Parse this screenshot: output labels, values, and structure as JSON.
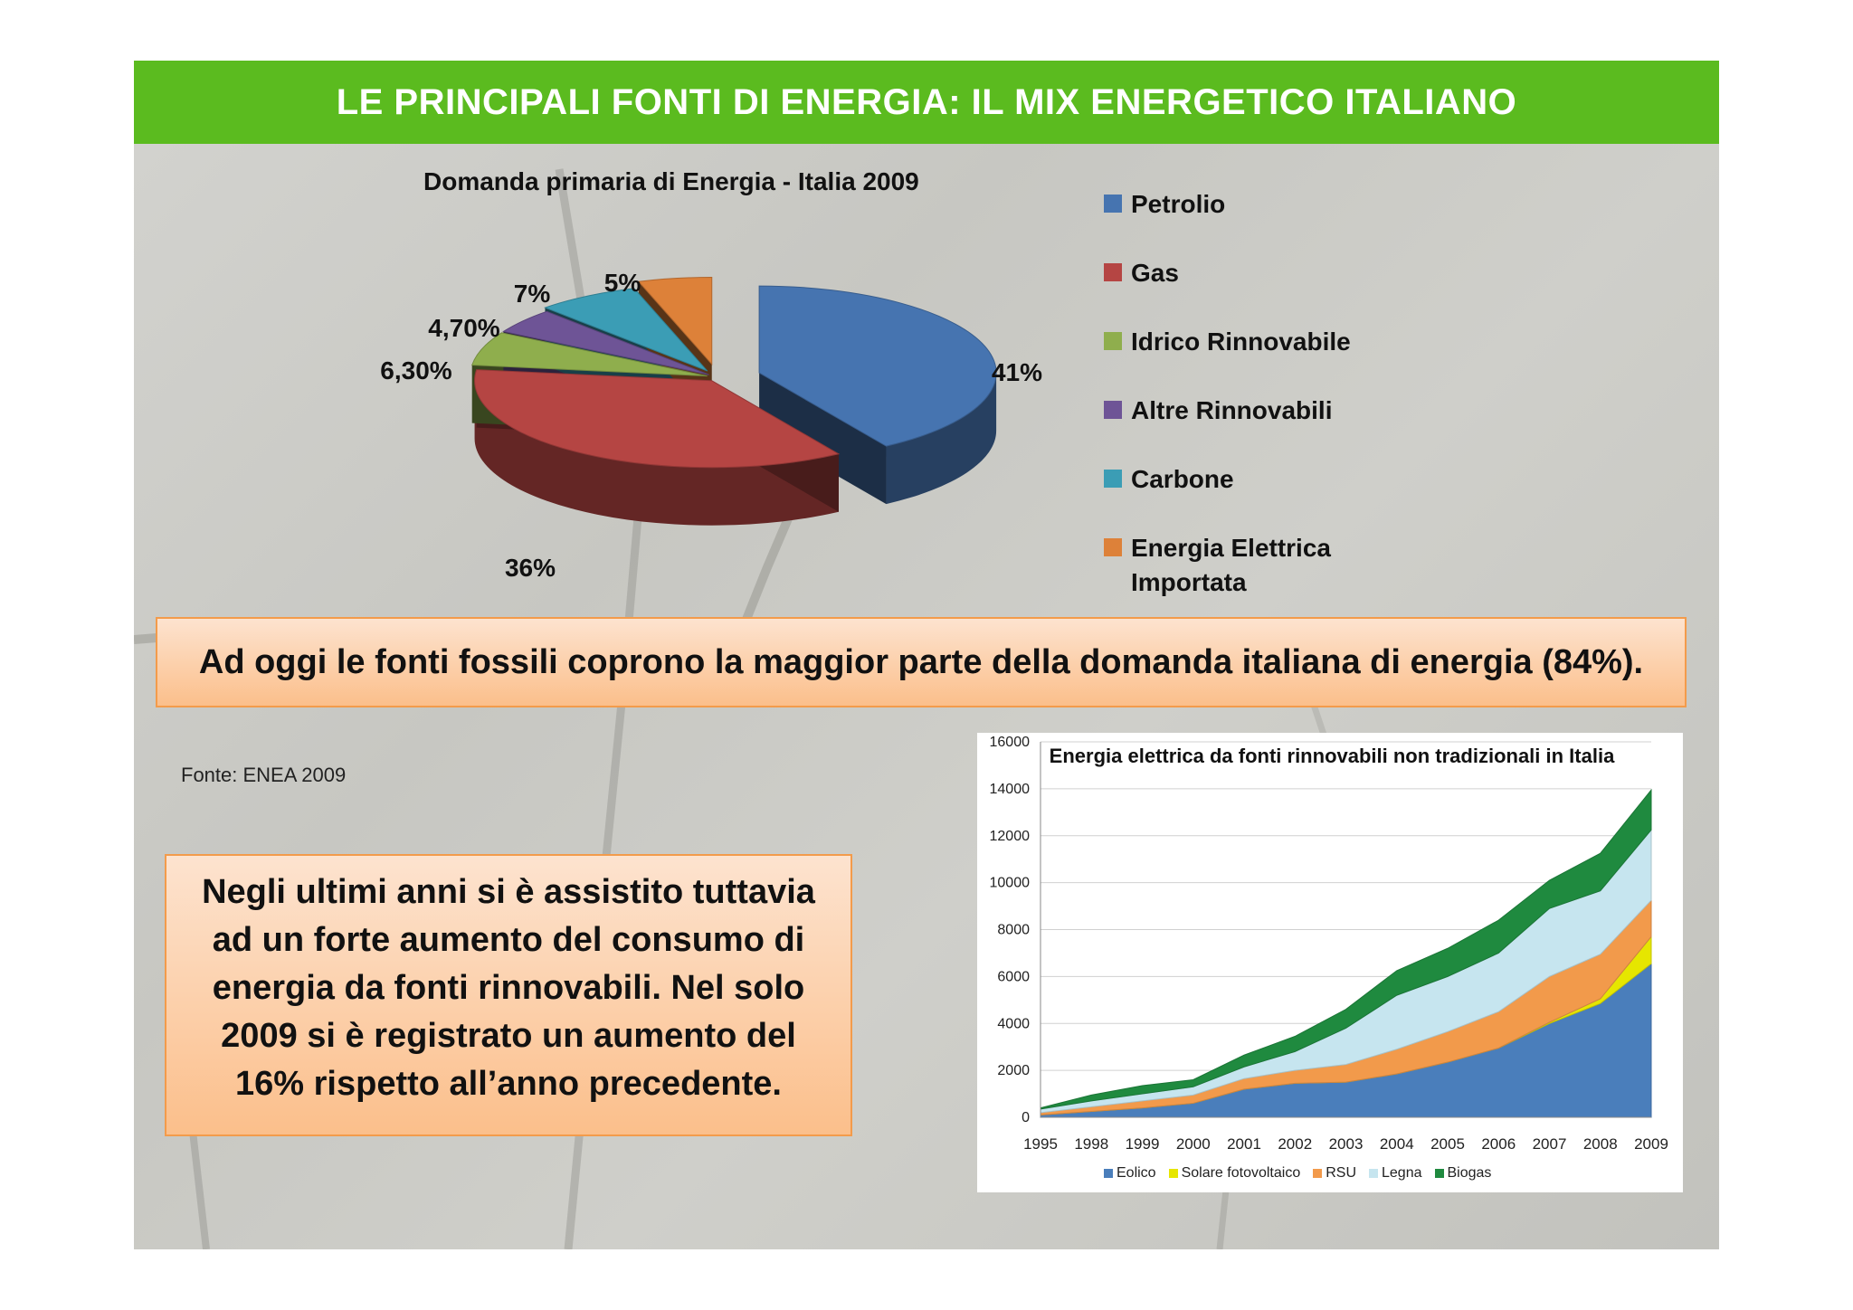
{
  "title": "LE PRINCIPALI FONTI DI ENERGIA: IL MIX ENERGETICO ITALIANO",
  "callouts": {
    "fossil": "Ad oggi le fonti fossili coprono la maggior parte della domanda italiana di energia (84%).",
    "renewables": "Negli ultimi anni si è assistito tuttavia ad un forte aumento del consumo di energia da fonti rinnovabili. Nel solo 2009 si è registrato un aumento del 16% rispetto all’anno precedente."
  },
  "source": "Fonte: ENEA 2009",
  "colors": {
    "title_bar": "#5bbb1f",
    "callout_border": "#f39b4b"
  },
  "chart_data": [
    {
      "type": "pie",
      "title": "Domanda primaria di Energia - Italia 2009",
      "legend_position": "right",
      "slices": [
        {
          "label": "Petrolio",
          "value": 41,
          "value_label": "41%",
          "color": "#4674b0"
        },
        {
          "label": "Gas",
          "value": 36,
          "value_label": "36%",
          "color": "#b54543"
        },
        {
          "label": "Idrico Rinnovabile",
          "value": 6.3,
          "value_label": "6,30%",
          "color": "#8fae4d"
        },
        {
          "label": "Altre Rinnovabili",
          "value": 4.7,
          "value_label": "4,70%",
          "color": "#6e5496"
        },
        {
          "label": "Carbone",
          "value": 7,
          "value_label": "7%",
          "color": "#3b9db5"
        },
        {
          "label": "Energia Elettrica Importata",
          "value": 5,
          "value_label": "5%",
          "color": "#dd8139"
        }
      ]
    },
    {
      "type": "area",
      "stacked": true,
      "title": "Energia elettrica da fonti rinnovabili non tradizionali in Italia",
      "xlabel": "",
      "ylabel": "",
      "ylim": [
        0,
        16000
      ],
      "yticks": [
        0,
        2000,
        4000,
        6000,
        8000,
        10000,
        12000,
        14000,
        16000
      ],
      "x": [
        "1995",
        "1998",
        "1999",
        "2000",
        "2001",
        "2002",
        "2003",
        "2004",
        "2005",
        "2006",
        "2007",
        "2008",
        "2009"
      ],
      "legend_position": "bottom",
      "grid": true,
      "series": [
        {
          "name": "Eolico",
          "color": "#4a7ebb",
          "values": [
            100,
            250,
            400,
            600,
            1200,
            1450,
            1500,
            1850,
            2350,
            2950,
            4000,
            4850,
            6550
          ]
        },
        {
          "name": "Solare fotovoltaico",
          "color": "#e6e600",
          "values": [
            0,
            0,
            0,
            0,
            0,
            0,
            0,
            0,
            0,
            0,
            50,
            200,
            1150
          ]
        },
        {
          "name": "RSU",
          "color": "#f29a4b",
          "values": [
            100,
            200,
            300,
            350,
            450,
            550,
            750,
            1050,
            1300,
            1550,
            1950,
            1900,
            1550
          ]
        },
        {
          "name": "Legna",
          "color": "#c6e5ef",
          "values": [
            150,
            250,
            300,
            350,
            500,
            800,
            1550,
            2300,
            2350,
            2500,
            2900,
            2700,
            3000
          ]
        },
        {
          "name": "Biogas",
          "color": "#1f8a3f",
          "values": [
            50,
            250,
            350,
            300,
            500,
            650,
            800,
            1050,
            1200,
            1400,
            1200,
            1600,
            1700
          ]
        }
      ]
    }
  ]
}
